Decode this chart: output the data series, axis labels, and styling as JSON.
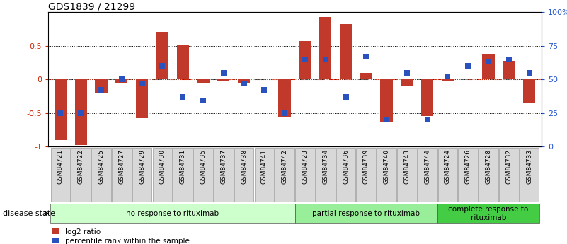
{
  "title": "GDS1839 / 21299",
  "samples": [
    "GSM84721",
    "GSM84722",
    "GSM84725",
    "GSM84727",
    "GSM84729",
    "GSM84730",
    "GSM84731",
    "GSM84735",
    "GSM84737",
    "GSM84738",
    "GSM84741",
    "GSM84742",
    "GSM84723",
    "GSM84734",
    "GSM84736",
    "GSM84739",
    "GSM84740",
    "GSM84743",
    "GSM84744",
    "GSM84724",
    "GSM84726",
    "GSM84728",
    "GSM84732",
    "GSM84733"
  ],
  "log2_ratio": [
    -0.9,
    -0.98,
    -0.2,
    -0.06,
    -0.58,
    0.71,
    0.52,
    -0.05,
    -0.02,
    -0.05,
    0.0,
    -0.57,
    0.57,
    0.93,
    0.82,
    0.1,
    -0.63,
    -0.1,
    -0.55,
    -0.03,
    0.0,
    0.37,
    0.28,
    -0.35
  ],
  "percentile_rank": [
    25,
    25,
    42,
    50,
    47,
    60,
    37,
    34,
    55,
    47,
    42,
    25,
    65,
    65,
    37,
    67,
    20,
    55,
    20,
    52,
    60,
    63,
    65,
    55
  ],
  "bar_color": "#c0392b",
  "dot_color": "#2a52be",
  "ylim_left": [
    -1.0,
    1.0
  ],
  "ylim_right": [
    0,
    100
  ],
  "yticks_left": [
    -1.0,
    -0.5,
    0.0,
    0.5
  ],
  "yticks_right": [
    0,
    25,
    50,
    75,
    100
  ],
  "ytick_labels_left": [
    "-1",
    "-0.5",
    "0",
    "0.5"
  ],
  "ytick_labels_right": [
    "0",
    "25",
    "50",
    "75",
    "100%"
  ],
  "groups": [
    {
      "label": "no response to rituximab",
      "start": 0,
      "end": 11,
      "color": "#ccffcc"
    },
    {
      "label": "partial response to rituximab",
      "start": 12,
      "end": 18,
      "color": "#99ee99"
    },
    {
      "label": "complete response to\nrituximab",
      "start": 19,
      "end": 23,
      "color": "#44cc44"
    }
  ],
  "disease_state_label": "disease state",
  "figsize": [
    8.01,
    3.45
  ],
  "dpi": 100
}
